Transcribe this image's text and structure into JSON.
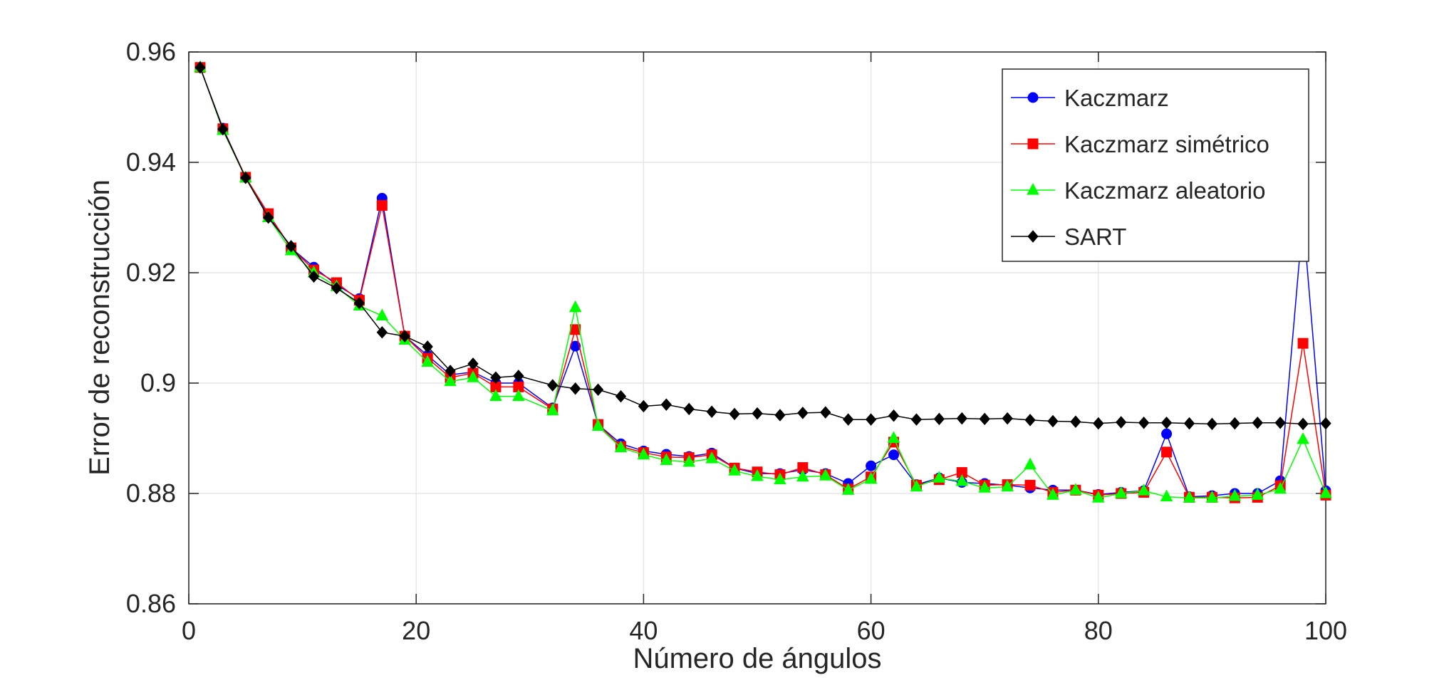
{
  "chart_data": {
    "type": "line",
    "xlabel": "Número de ángulos",
    "ylabel": "Error de reconstrucción",
    "xlim": [
      0,
      100
    ],
    "ylim": [
      0.86,
      0.96
    ],
    "xticks": [
      0,
      20,
      40,
      60,
      80,
      100
    ],
    "xtick_labels": [
      "0",
      "20",
      "40",
      "60",
      "80",
      "100"
    ],
    "yticks": [
      0.86,
      0.88,
      0.9,
      0.92,
      0.94,
      0.96
    ],
    "ytick_labels": [
      "0.86",
      "0.88",
      "0.9",
      "0.92",
      "0.94",
      "0.96"
    ],
    "grid": true,
    "legend_position": "top-right",
    "x": [
      1,
      3,
      5,
      7,
      9,
      11,
      13,
      15,
      17,
      19,
      21,
      23,
      25,
      27,
      29,
      32,
      34,
      36,
      38,
      40,
      42,
      44,
      46,
      48,
      50,
      52,
      54,
      56,
      58,
      60,
      62,
      64,
      66,
      68,
      70,
      72,
      74,
      76,
      78,
      80,
      82,
      84,
      86,
      88,
      90,
      92,
      94,
      96,
      98,
      100
    ],
    "series": [
      {
        "name": "Kaczmarz",
        "color": "#0000ff",
        "marker": "circle",
        "values": [
          0.9572,
          0.9462,
          0.9373,
          0.9305,
          0.9245,
          0.921,
          0.9178,
          0.9153,
          0.9335,
          0.9085,
          0.905,
          0.9015,
          0.902,
          0.9,
          0.9,
          0.8955,
          0.9067,
          0.8925,
          0.889,
          0.8877,
          0.8871,
          0.8867,
          0.8873,
          0.8846,
          0.8836,
          0.8836,
          0.8843,
          0.8836,
          0.8818,
          0.885,
          0.887,
          0.8816,
          0.8828,
          0.882,
          0.8818,
          0.8815,
          0.881,
          0.8806,
          0.8806,
          0.8798,
          0.8802,
          0.8805,
          0.8908,
          0.8794,
          0.8796,
          0.88,
          0.88,
          0.8823,
          0.93,
          0.8805
        ]
      },
      {
        "name": "Kaczmarz simétrico",
        "color": "#ff0000",
        "marker": "square",
        "values": [
          0.9572,
          0.9461,
          0.9373,
          0.9307,
          0.9245,
          0.9205,
          0.9182,
          0.915,
          0.9322,
          0.9085,
          0.9045,
          0.901,
          0.9018,
          0.8993,
          0.8993,
          0.8953,
          0.9097,
          0.8925,
          0.8885,
          0.8874,
          0.8866,
          0.8865,
          0.887,
          0.8846,
          0.8839,
          0.8834,
          0.8847,
          0.8834,
          0.8808,
          0.883,
          0.8893,
          0.8815,
          0.8825,
          0.8838,
          0.8815,
          0.8816,
          0.8815,
          0.8802,
          0.8806,
          0.8797,
          0.88,
          0.8802,
          0.8875,
          0.8793,
          0.8793,
          0.8792,
          0.8793,
          0.8814,
          0.9072,
          0.8797
        ]
      },
      {
        "name": "Kaczmarz aleatorio",
        "color": "#00ff00",
        "marker": "triangle",
        "values": [
          0.9572,
          0.9458,
          0.9372,
          0.93,
          0.924,
          0.92,
          0.9175,
          0.914,
          0.9122,
          0.9078,
          0.9038,
          0.9003,
          0.901,
          0.8976,
          0.8976,
          0.895,
          0.9137,
          0.8922,
          0.8883,
          0.887,
          0.886,
          0.8857,
          0.8863,
          0.8841,
          0.8831,
          0.8825,
          0.883,
          0.8832,
          0.8806,
          0.8826,
          0.89,
          0.8812,
          0.8828,
          0.8822,
          0.881,
          0.8812,
          0.8852,
          0.8797,
          0.8806,
          0.8792,
          0.88,
          0.8805,
          0.8794,
          0.8792,
          0.8792,
          0.8795,
          0.8797,
          0.8808,
          0.8898,
          0.88
        ]
      },
      {
        "name": "SART",
        "color": "#000000",
        "marker": "diamond",
        "values": [
          0.9572,
          0.946,
          0.9372,
          0.93,
          0.9248,
          0.9193,
          0.9172,
          0.9145,
          0.9092,
          0.9085,
          0.9066,
          0.9022,
          0.9035,
          0.901,
          0.9013,
          0.8996,
          0.899,
          0.8988,
          0.8976,
          0.8958,
          0.8961,
          0.8953,
          0.8948,
          0.8944,
          0.8945,
          0.8942,
          0.8946,
          0.8947,
          0.8934,
          0.8934,
          0.8941,
          0.8934,
          0.8935,
          0.8936,
          0.8935,
          0.8936,
          0.8933,
          0.8931,
          0.893,
          0.8927,
          0.8929,
          0.8928,
          0.8928,
          0.8927,
          0.8926,
          0.8927,
          0.8928,
          0.8928,
          0.8926,
          0.8927
        ]
      }
    ]
  }
}
